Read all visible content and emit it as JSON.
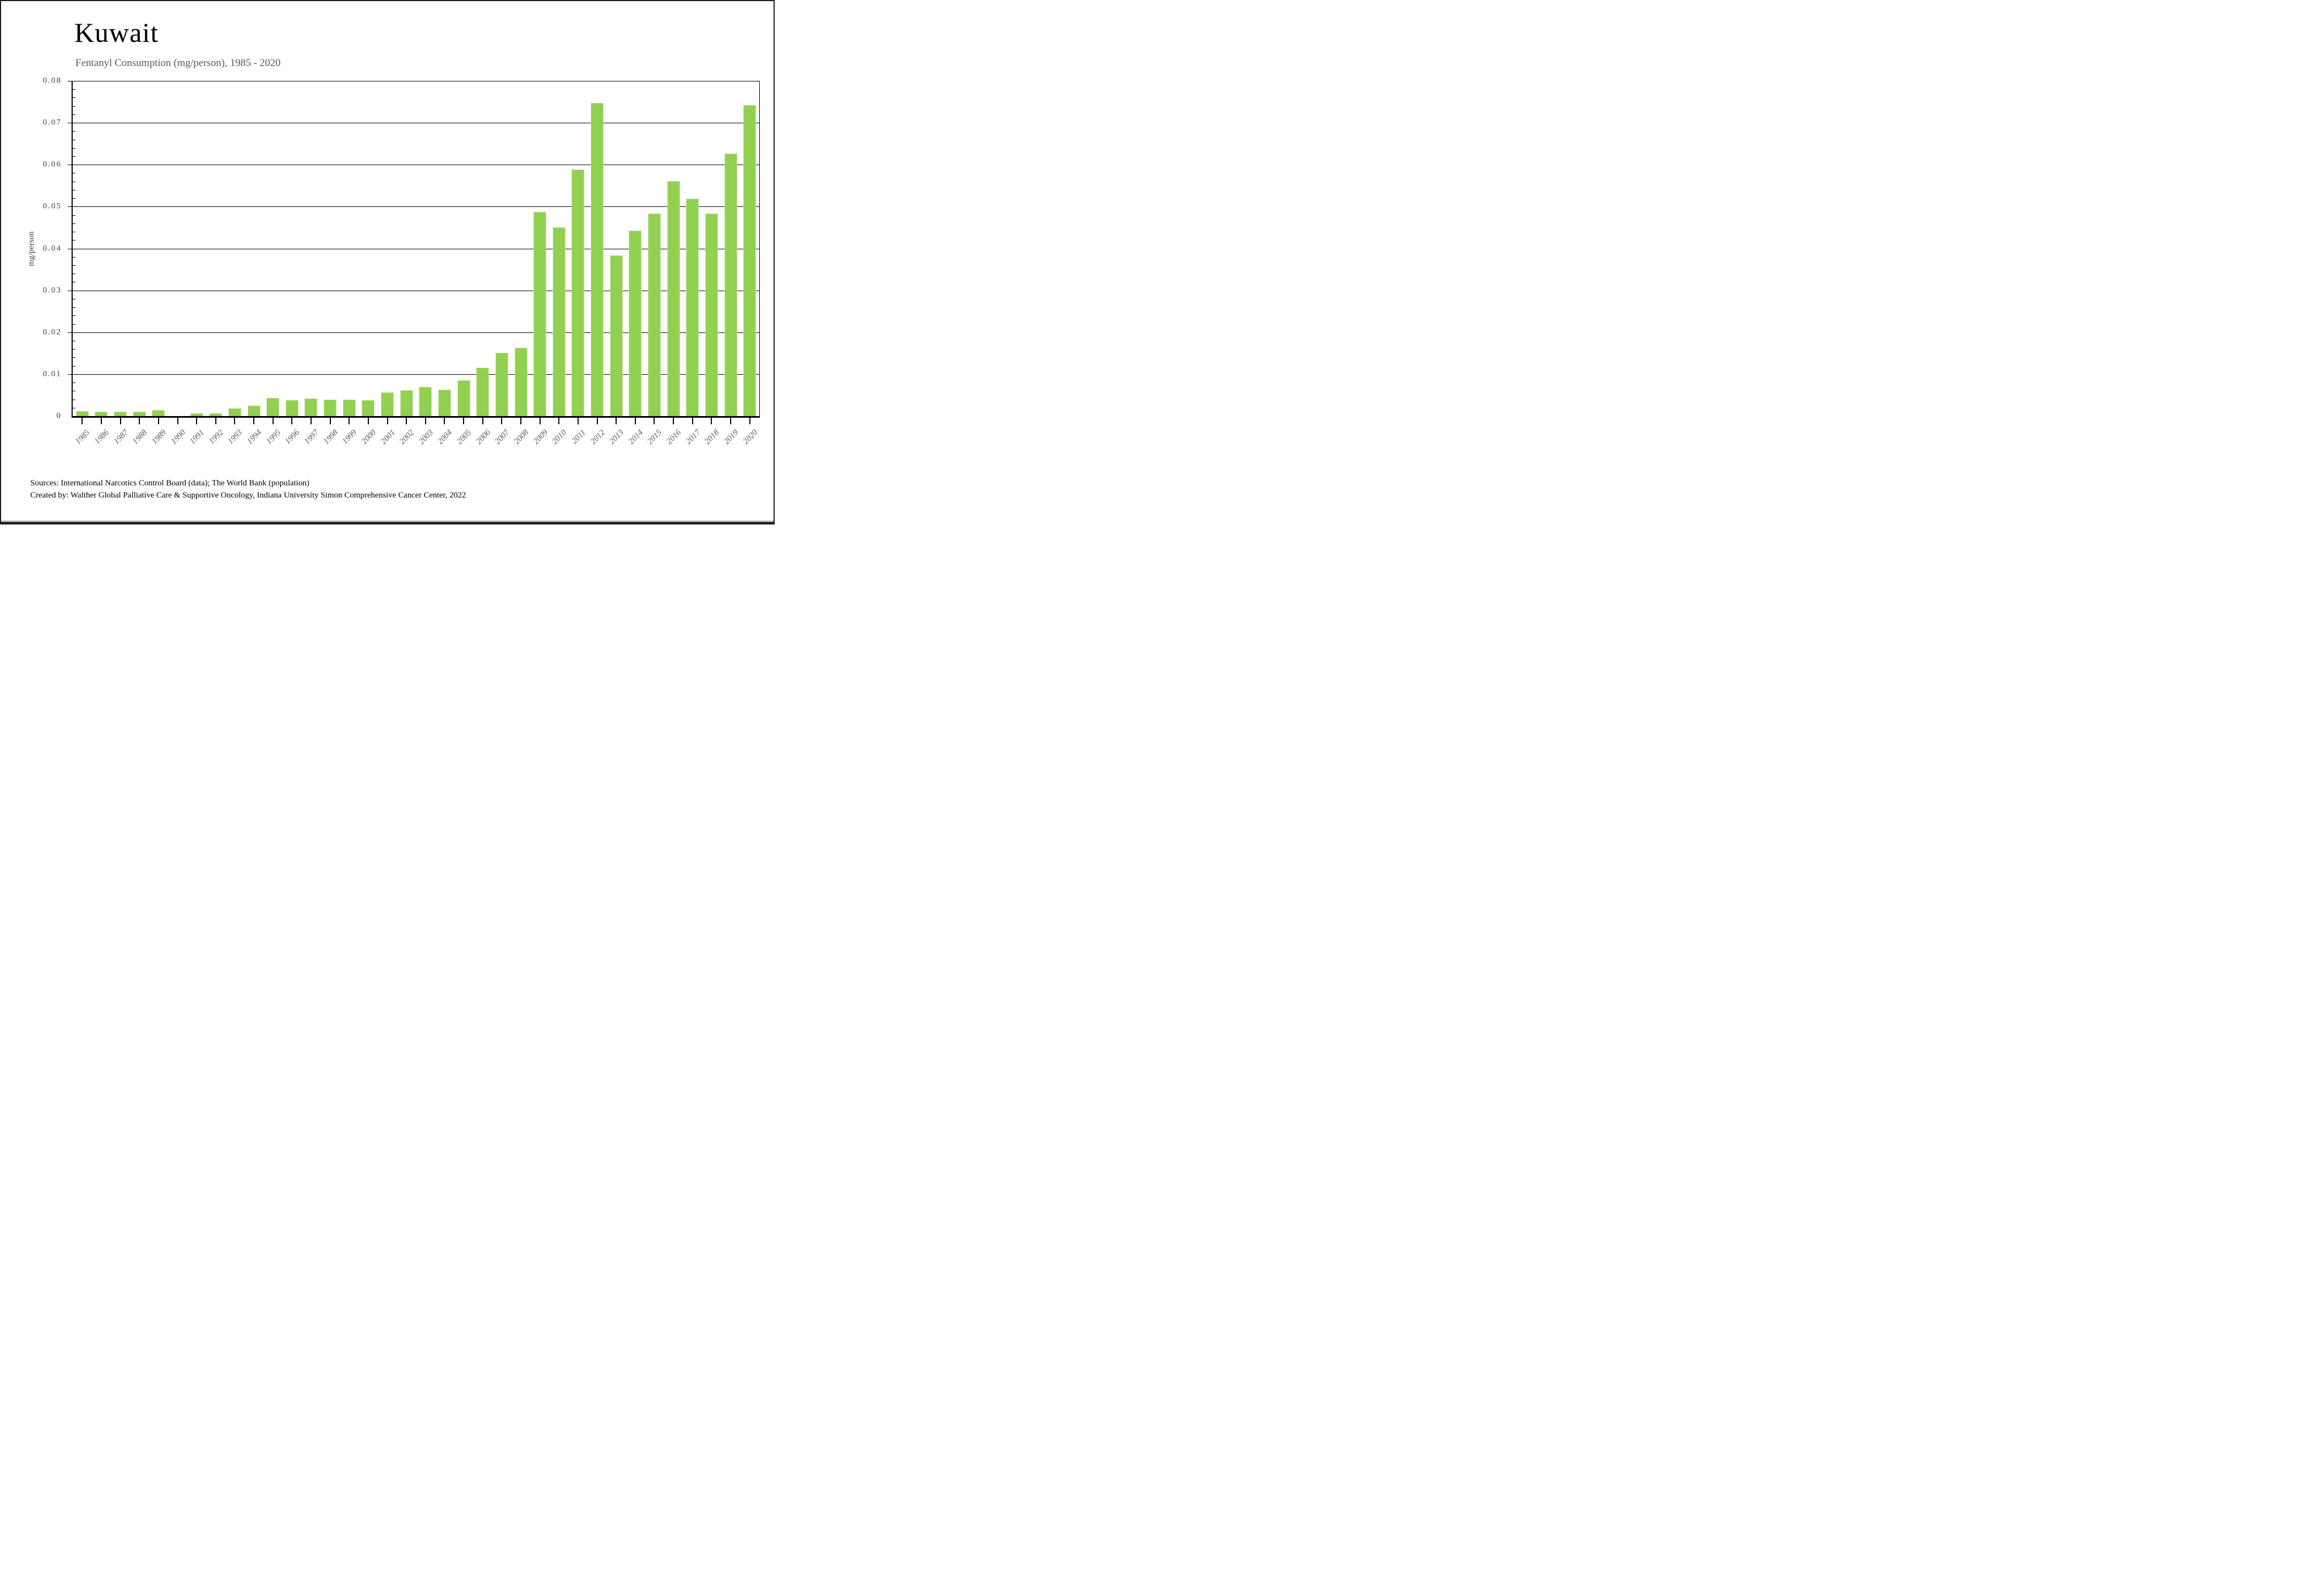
{
  "page": {
    "title": "Kuwait",
    "subtitle": "Fentanyl Consumption (mg/person), 1985 - 2020"
  },
  "footer": {
    "line1": "Sources: International Narcotics Control Board (data); The World Bank (population)",
    "line2": "Created by: Walther Global Palliative Care & Supportive Oncology, Indiana University Simon Comprehensive Cancer Center, 2022"
  },
  "chart_data": {
    "type": "bar",
    "title": "Kuwait",
    "subtitle": "Fentanyl Consumption (mg/person), 1985 - 2020",
    "xlabel": "",
    "ylabel": "mg/person",
    "ylim": [
      0,
      0.08
    ],
    "ytick_step": 0.01,
    "ytick_labels": [
      "0",
      "0.01",
      "0.02",
      "0.03",
      "0.04",
      "0.05",
      "0.06",
      "0.07",
      "0.08"
    ],
    "minor_tick_step": 0.002,
    "grid": "horizontal major gridlines on, black",
    "legend_position": "none",
    "bar_color": "#92d050",
    "bar_border_color": "#c0e294",
    "categories": [
      1985,
      1986,
      1987,
      1988,
      1989,
      1990,
      1991,
      1992,
      1993,
      1994,
      1995,
      1996,
      1997,
      1998,
      1999,
      2000,
      2001,
      2002,
      2003,
      2004,
      2005,
      2006,
      2007,
      2008,
      2009,
      2010,
      2011,
      2012,
      2013,
      2014,
      2015,
      2016,
      2017,
      2018,
      2019,
      2020
    ],
    "values": [
      0.0012,
      0.0011,
      0.0011,
      0.0011,
      0.0015,
      0.0,
      0.0006,
      0.0006,
      0.0018,
      0.0025,
      0.0044,
      0.0038,
      0.0042,
      0.0039,
      0.004,
      0.0038,
      0.0057,
      0.0062,
      0.007,
      0.0063,
      0.0086,
      0.0115,
      0.0151,
      0.0163,
      0.0487,
      0.045,
      0.0589,
      0.0748,
      0.0383,
      0.0443,
      0.0483,
      0.0561,
      0.0519,
      0.0483,
      0.0626,
      0.0742
    ]
  }
}
